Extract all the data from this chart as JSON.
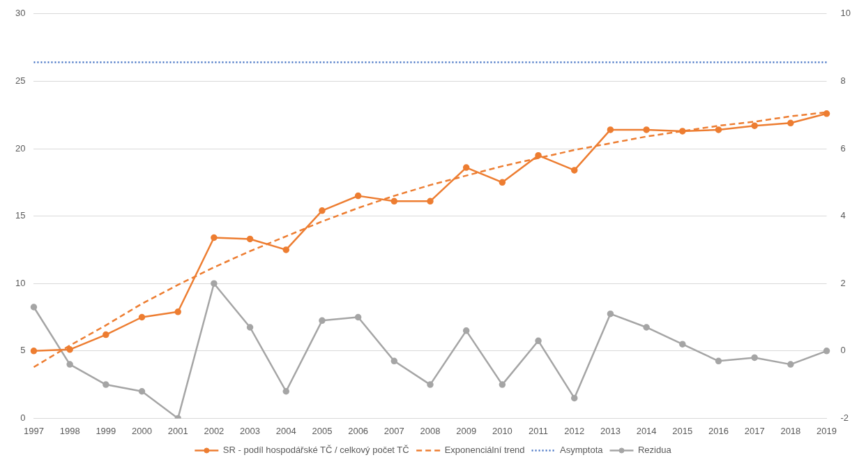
{
  "chart_data": {
    "type": "line",
    "categories": [
      "1997",
      "1998",
      "1999",
      "2000",
      "2001",
      "2002",
      "2003",
      "2004",
      "2005",
      "2006",
      "2007",
      "2008",
      "2009",
      "2010",
      "2011",
      "2012",
      "2013",
      "2014",
      "2015",
      "2016",
      "2017",
      "2018",
      "2019"
    ],
    "series": [
      {
        "name": "SR - podíl hospodářské TČ / celkový počet TČ",
        "color": "#ed7d31",
        "marker": "circle",
        "line_style": "solid",
        "values": [
          5.0,
          5.1,
          6.2,
          7.5,
          7.9,
          13.4,
          13.3,
          12.5,
          15.4,
          16.5,
          16.1,
          16.1,
          18.6,
          17.5,
          19.5,
          18.4,
          21.4,
          21.4,
          21.3,
          21.4,
          21.7,
          21.9,
          22.6
        ]
      },
      {
        "name": "Exponenciální trend",
        "color": "#ed7d31",
        "marker": "none",
        "line_style": "dashed",
        "values": [
          3.8,
          5.4,
          6.9,
          8.5,
          9.9,
          11.2,
          12.4,
          13.5,
          14.6,
          15.6,
          16.5,
          17.3,
          18.0,
          18.7,
          19.3,
          19.9,
          20.4,
          20.9,
          21.3,
          21.7,
          22.0,
          22.4,
          22.7
        ]
      },
      {
        "name": "Asymptota",
        "color": "#4472c4",
        "marker": "none",
        "line_style": "dotted",
        "values": [
          26.4,
          26.4,
          26.4,
          26.4,
          26.4,
          26.4,
          26.4,
          26.4,
          26.4,
          26.4,
          26.4,
          26.4,
          26.4,
          26.4,
          26.4,
          26.4,
          26.4,
          26.4,
          26.4,
          26.4,
          26.4,
          26.4,
          26.4
        ]
      },
      {
        "name": "Rezidua",
        "color": "#a5a5a5",
        "marker": "circle",
        "line_style": "solid",
        "axis": "y2",
        "values": [
          1.3,
          -0.4,
          -1.0,
          -1.2,
          -2.0,
          2.0,
          0.7,
          -1.2,
          0.9,
          1.0,
          -0.3,
          -1.0,
          0.6,
          -1.0,
          0.3,
          -1.4,
          1.1,
          0.7,
          0.2,
          -0.3,
          -0.2,
          -0.4,
          0.0
        ]
      }
    ],
    "ylim": [
      0,
      30
    ],
    "yticks": [
      0,
      5,
      10,
      15,
      20,
      25,
      30
    ],
    "y2lim": [
      -2,
      10
    ],
    "y2ticks": [
      -2,
      0,
      2,
      4,
      6,
      8,
      10
    ],
    "grid": "y",
    "legend": "bottom"
  }
}
